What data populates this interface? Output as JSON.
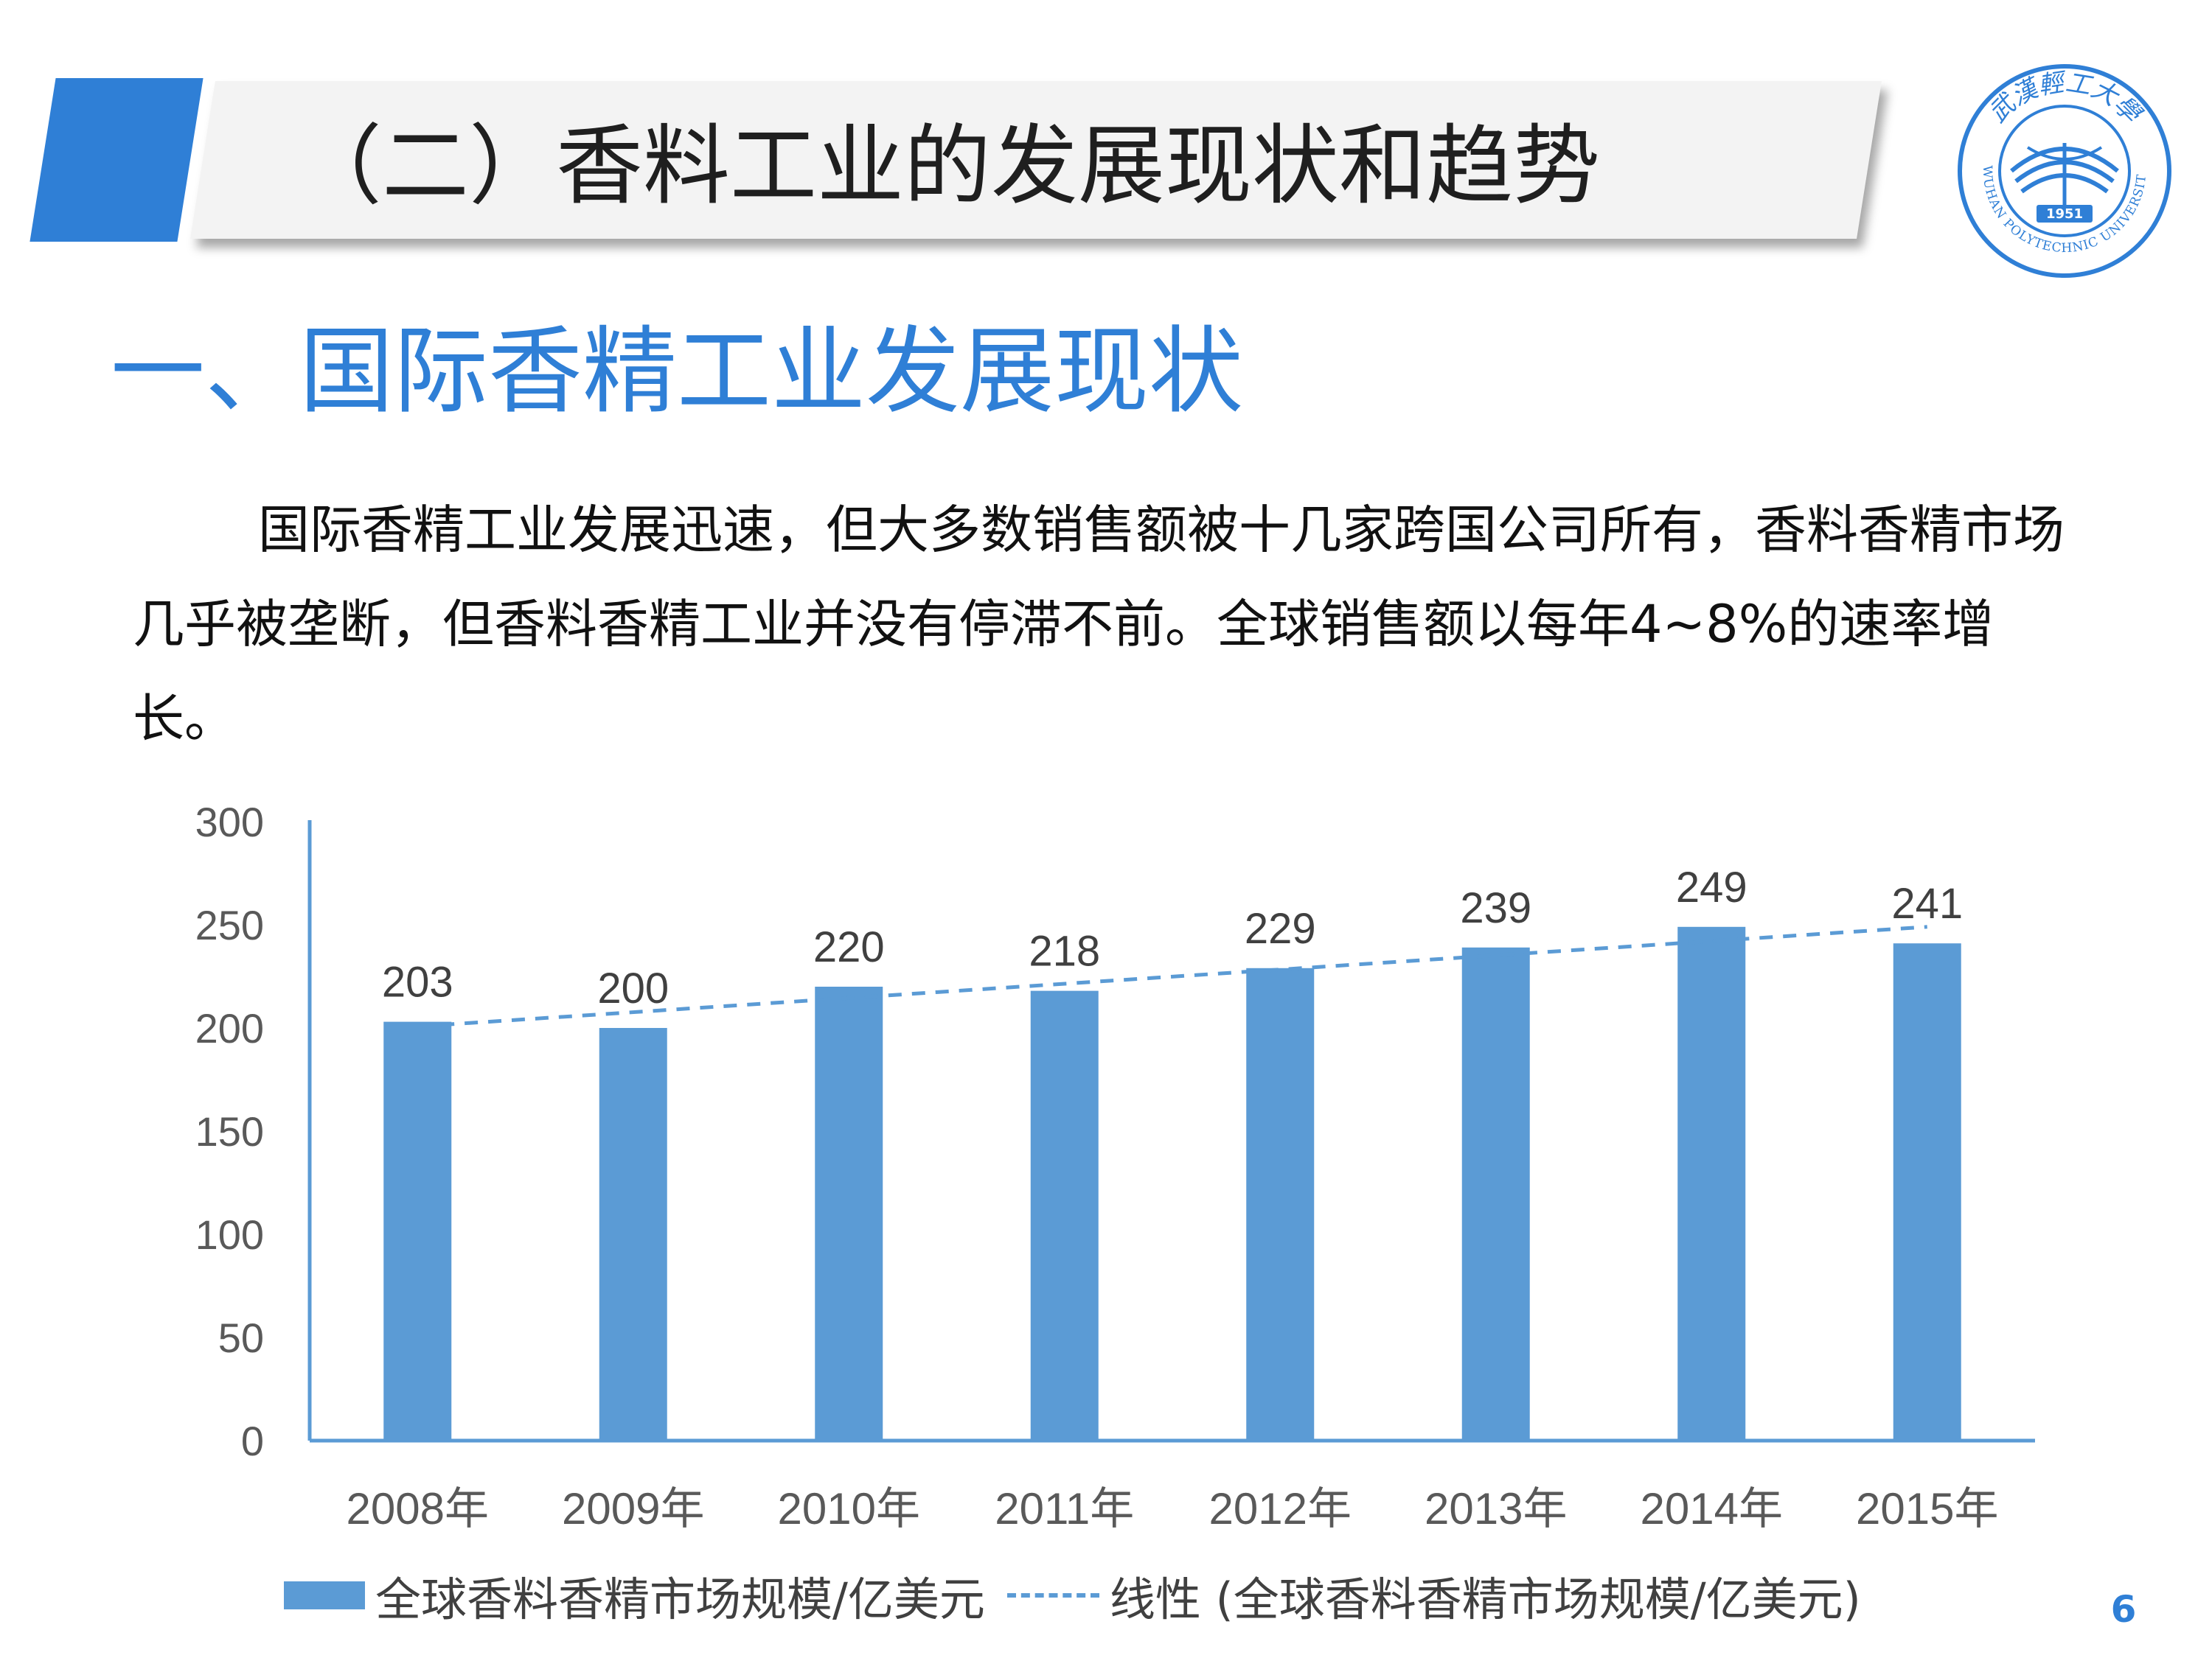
{
  "slide": {
    "title": "（二）香料工业的发展现状和趋势",
    "section_title": "一、国际香精工业发展现状",
    "paragraph": "国际香精工业发展迅速，但大多数销售额被十几家跨国公司所有，香料香精市场几乎被垄断，但香料香精工业并没有停滞不前。全球销售额以每年4~8%的速率增长。",
    "page_number": "6",
    "logo": {
      "icon": "university-seal-icon",
      "year": "1951",
      "name_en": "WUHAN POLYTECHNIC UNIVERSITY",
      "name_cn": "武漢輕工大學"
    }
  },
  "colors": {
    "accent": "#2f7fd6",
    "bar": "#5b9bd5",
    "text": "#111111"
  },
  "chart_data": {
    "type": "bar",
    "categories": [
      "2008年",
      "2009年",
      "2010年",
      "2011年",
      "2012年",
      "2013年",
      "2014年",
      "2015年"
    ],
    "series": [
      {
        "name": "全球香料香精市场规模/亿美元",
        "values": [
          203,
          200,
          220,
          218,
          229,
          239,
          249,
          241
        ]
      }
    ],
    "trendline": {
      "name": "线性 (全球香料香精市场规模/亿美元)",
      "type": "linear"
    },
    "ylim": [
      0,
      300
    ],
    "yticks": [
      0,
      50,
      100,
      150,
      200,
      250,
      300
    ],
    "data_labels": true,
    "grid": false,
    "legend": "bottom"
  }
}
